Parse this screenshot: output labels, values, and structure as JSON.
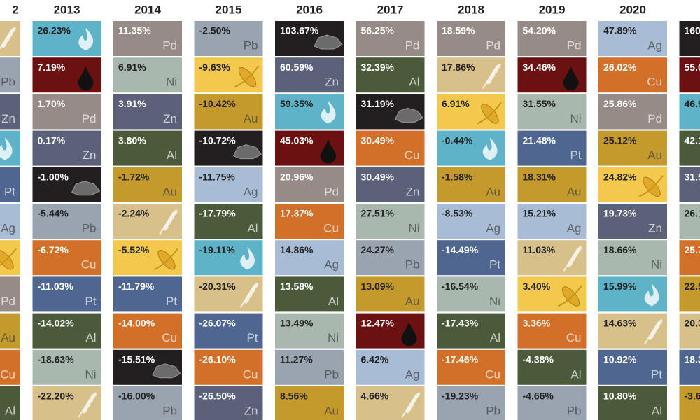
{
  "columns": [
    {
      "year": "2",
      "cells": [
        {
          "color": "#d8c08a",
          "icon": "wheat"
        },
        {
          "symbol": "Pb",
          "color": "#9aa3b0"
        },
        {
          "symbol": "Zn",
          "color": "#5a6178"
        },
        {
          "color": "#5fb3c8",
          "icon": "flame"
        },
        {
          "symbol": "Pt",
          "color": "#4f6690"
        },
        {
          "symbol": "Ag",
          "color": "#a9bcd6"
        },
        {
          "color": "#f2c94c",
          "icon": "corn"
        },
        {
          "symbol": "Pd",
          "color": "#968b87"
        },
        {
          "symbol": "Au",
          "color": "#c49a2c"
        },
        {
          "symbol": "Cu",
          "color": "#d2702a"
        },
        {
          "symbol": "Al",
          "color": "#4b5a3a"
        }
      ]
    },
    {
      "year": "2013",
      "cells": [
        {
          "value": "26.23%",
          "color": "#5fb3c8",
          "icon": "flame"
        },
        {
          "value": "7.19%",
          "color": "#6b1111",
          "icon": "drop"
        },
        {
          "value": "1.70%",
          "symbol": "Pd",
          "color": "#968b87"
        },
        {
          "value": "0.17%",
          "symbol": "Zn",
          "color": "#5a6178"
        },
        {
          "value": "-1.00%",
          "color": "#231f20",
          "icon": "coal"
        },
        {
          "value": "-5.44%",
          "symbol": "Pb",
          "color": "#9aa3b0"
        },
        {
          "value": "-6.72%",
          "symbol": "Cu",
          "color": "#d2702a"
        },
        {
          "value": "-11.03%",
          "symbol": "Pt",
          "color": "#4f6690"
        },
        {
          "value": "-14.02%",
          "symbol": "Al",
          "color": "#4b5a3a"
        },
        {
          "value": "-18.63%",
          "symbol": "Ni",
          "color": "#a9b8ae"
        },
        {
          "value": "-22.20%",
          "color": "#d8c08a",
          "icon": "wheat"
        }
      ]
    },
    {
      "year": "2014",
      "cells": [
        {
          "value": "11.35%",
          "symbol": "Pd",
          "color": "#968b87"
        },
        {
          "value": "6.91%",
          "symbol": "Ni",
          "color": "#a9b8ae"
        },
        {
          "value": "3.91%",
          "symbol": "Zn",
          "color": "#5a6178"
        },
        {
          "value": "3.80%",
          "symbol": "Al",
          "color": "#4b5a3a"
        },
        {
          "value": "-1.72%",
          "symbol": "Au",
          "color": "#c49a2c"
        },
        {
          "value": "-2.24%",
          "color": "#d8c08a",
          "icon": "wheat"
        },
        {
          "value": "-5.52%",
          "color": "#f2c94c",
          "icon": "corn"
        },
        {
          "value": "-11.79%",
          "symbol": "Pt",
          "color": "#4f6690"
        },
        {
          "value": "-14.00%",
          "symbol": "Cu",
          "color": "#d2702a"
        },
        {
          "value": "-15.51%",
          "color": "#231f20",
          "icon": "coal"
        },
        {
          "value": "-16.00%",
          "symbol": "Pb",
          "color": "#9aa3b0"
        }
      ]
    },
    {
      "year": "2015",
      "cells": [
        {
          "value": "-2.50%",
          "symbol": "Pb",
          "color": "#9aa3b0"
        },
        {
          "value": "-9.63%",
          "color": "#f2c94c",
          "icon": "corn"
        },
        {
          "value": "-10.42%",
          "symbol": "Au",
          "color": "#c49a2c"
        },
        {
          "value": "-10.72%",
          "color": "#231f20",
          "icon": "coal"
        },
        {
          "value": "-11.75%",
          "symbol": "Ag",
          "color": "#a9bcd6"
        },
        {
          "value": "-17.79%",
          "symbol": "Al",
          "color": "#4b5a3a"
        },
        {
          "value": "-19.11%",
          "color": "#5fb3c8",
          "icon": "flame"
        },
        {
          "value": "-20.31%",
          "color": "#d8c08a",
          "icon": "wheat"
        },
        {
          "value": "-26.07%",
          "symbol": "Pt",
          "color": "#4f6690"
        },
        {
          "value": "-26.10%",
          "symbol": "Cu",
          "color": "#d2702a"
        },
        {
          "value": "-26.50%",
          "symbol": "Zn",
          "color": "#5a6178"
        }
      ]
    },
    {
      "year": "2016",
      "cells": [
        {
          "value": "103.67%",
          "color": "#231f20",
          "icon": "coal"
        },
        {
          "value": "60.59%",
          "symbol": "Zn",
          "color": "#5a6178"
        },
        {
          "value": "59.35%",
          "color": "#5fb3c8",
          "icon": "flame"
        },
        {
          "value": "45.03%",
          "color": "#6b1111",
          "icon": "drop"
        },
        {
          "value": "20.96%",
          "symbol": "Pd",
          "color": "#968b87"
        },
        {
          "value": "17.37%",
          "symbol": "Cu",
          "color": "#d2702a"
        },
        {
          "value": "14.86%",
          "symbol": "Ag",
          "color": "#a9bcd6"
        },
        {
          "value": "13.58%",
          "symbol": "Al",
          "color": "#4b5a3a"
        },
        {
          "value": "13.49%",
          "symbol": "Ni",
          "color": "#a9b8ae"
        },
        {
          "value": "11.27%",
          "symbol": "Pb",
          "color": "#9aa3b0"
        },
        {
          "value": "8.56%",
          "symbol": "Au",
          "color": "#c49a2c"
        }
      ]
    },
    {
      "year": "2017",
      "cells": [
        {
          "value": "56.25%",
          "symbol": "Pd",
          "color": "#968b87"
        },
        {
          "value": "32.39%",
          "symbol": "Al",
          "color": "#4b5a3a"
        },
        {
          "value": "31.19%",
          "color": "#231f20",
          "icon": "coal"
        },
        {
          "value": "30.49%",
          "symbol": "Cu",
          "color": "#d2702a"
        },
        {
          "value": "30.49%",
          "symbol": "Zn",
          "color": "#5a6178"
        },
        {
          "value": "27.51%",
          "symbol": "Ni",
          "color": "#a9b8ae"
        },
        {
          "value": "24.27%",
          "symbol": "Pb",
          "color": "#9aa3b0"
        },
        {
          "value": "13.09%",
          "symbol": "Au",
          "color": "#c49a2c"
        },
        {
          "value": "12.47%",
          "color": "#6b1111",
          "icon": "drop"
        },
        {
          "value": "6.42%",
          "symbol": "Ag",
          "color": "#a9bcd6"
        },
        {
          "value": "4.66%",
          "color": "#d8c08a",
          "icon": "wheat"
        }
      ]
    },
    {
      "year": "2018",
      "cells": [
        {
          "value": "18.59%",
          "symbol": "Pd",
          "color": "#968b87"
        },
        {
          "value": "17.86%",
          "color": "#d8c08a",
          "icon": "wheat"
        },
        {
          "value": "6.91%",
          "color": "#f2c94c",
          "icon": "corn"
        },
        {
          "value": "-0.44%",
          "color": "#5fb3c8",
          "icon": "flame"
        },
        {
          "value": "-1.58%",
          "symbol": "Au",
          "color": "#c49a2c"
        },
        {
          "value": "-8.53%",
          "symbol": "Ag",
          "color": "#a9bcd6"
        },
        {
          "value": "-14.49%",
          "symbol": "Pt",
          "color": "#4f6690"
        },
        {
          "value": "-16.54%",
          "symbol": "Ni",
          "color": "#a9b8ae"
        },
        {
          "value": "-17.43%",
          "symbol": "Al",
          "color": "#4b5a3a"
        },
        {
          "value": "-17.46%",
          "symbol": "Cu",
          "color": "#d2702a"
        },
        {
          "value": "-19.23%",
          "symbol": "Pb",
          "color": "#9aa3b0"
        }
      ]
    },
    {
      "year": "2019",
      "cells": [
        {
          "value": "54.20%",
          "symbol": "Pd",
          "color": "#968b87"
        },
        {
          "value": "34.46%",
          "color": "#6b1111",
          "icon": "drop"
        },
        {
          "value": "31.55%",
          "symbol": "Ni",
          "color": "#a9b8ae"
        },
        {
          "value": "21.48%",
          "symbol": "Pt",
          "color": "#4f6690"
        },
        {
          "value": "18.31%",
          "symbol": "Au",
          "color": "#c49a2c"
        },
        {
          "value": "15.21%",
          "symbol": "Ag",
          "color": "#a9bcd6"
        },
        {
          "value": "11.03%",
          "color": "#d8c08a",
          "icon": "wheat"
        },
        {
          "value": "3.40%",
          "color": "#f2c94c",
          "icon": "corn"
        },
        {
          "value": "3.36%",
          "symbol": "Cu",
          "color": "#d2702a"
        },
        {
          "value": "-4.38%",
          "symbol": "Al",
          "color": "#4b5a3a"
        },
        {
          "value": "-4.66%",
          "symbol": "Pb",
          "color": "#9aa3b0"
        }
      ]
    },
    {
      "year": "2020",
      "cells": [
        {
          "value": "47.89%",
          "symbol": "Ag",
          "color": "#a9bcd6"
        },
        {
          "value": "26.02%",
          "symbol": "Cu",
          "color": "#d2702a"
        },
        {
          "value": "25.86%",
          "symbol": "Pd",
          "color": "#968b87"
        },
        {
          "value": "25.12%",
          "symbol": "Au",
          "color": "#c49a2c"
        },
        {
          "value": "24.82%",
          "color": "#f2c94c",
          "icon": "corn"
        },
        {
          "value": "19.73%",
          "symbol": "Zn",
          "color": "#5a6178"
        },
        {
          "value": "18.66%",
          "symbol": "Ni",
          "color": "#a9b8ae"
        },
        {
          "value": "15.99%",
          "color": "#5fb3c8",
          "icon": "flame"
        },
        {
          "value": "14.63%",
          "color": "#d8c08a",
          "icon": "wheat"
        },
        {
          "value": "10.92%",
          "symbol": "Pt",
          "color": "#4f6690"
        },
        {
          "value": "10.80%",
          "symbol": "Al",
          "color": "#4b5a3a"
        }
      ]
    },
    {
      "cells": [
        {
          "value": "160",
          "color": "#231f20"
        },
        {
          "value": "55.0",
          "color": "#6b1111"
        },
        {
          "value": "46.9",
          "color": "#5fb3c8"
        },
        {
          "value": "42.1",
          "color": "#4b5a3a"
        },
        {
          "value": "31.5",
          "color": "#5a6178"
        },
        {
          "value": "26.1",
          "color": "#a9b8ae"
        },
        {
          "value": "25.7",
          "color": "#d2702a"
        },
        {
          "value": "22.5",
          "color": "#c49a2c"
        },
        {
          "value": "20.3",
          "color": "#d8c08a"
        },
        {
          "value": "18.3",
          "color": "#4f6690"
        },
        {
          "value": "-3.6",
          "color": "#c49a2c"
        }
      ]
    }
  ]
}
